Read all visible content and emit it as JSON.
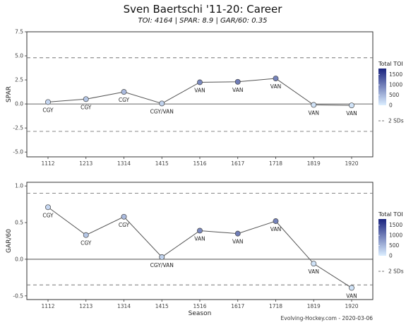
{
  "title": "Sven Baertschi '11-20: Career",
  "subtitle": "TOI: 4164 | SPAR: 8.9 | GAR/60: 0.35",
  "caption": "Evolving-Hockey.com - 2020-03-06",
  "colors": {
    "toi_low": "#dbeeff",
    "toi_high": "#1a237e",
    "line": "#555555",
    "zero_line": "#333333",
    "sd_line": "#777777",
    "panel_border": "#333333"
  },
  "legend": {
    "toi_title": "Total TOI",
    "toi_ticks": [
      "1500",
      "1000",
      "500",
      "0"
    ],
    "sd_label": "2 SDs"
  },
  "chart_data": [
    {
      "type": "line",
      "ylabel": "SPAR",
      "xlabel": "",
      "ylim": [
        -5.5,
        7.5
      ],
      "yticks": [
        "-5.0",
        "-2.5",
        "0.0",
        "2.5",
        "5.0",
        "7.5"
      ],
      "ytick_values": [
        -5,
        -2.5,
        0,
        2.5,
        5,
        7.5
      ],
      "sd_lines": [
        4.8,
        -2.85
      ],
      "categories": [
        "1112",
        "1213",
        "1314",
        "1415",
        "1516",
        "1617",
        "1718",
        "1819",
        "1920"
      ],
      "values": [
        0.2,
        0.5,
        1.25,
        0.05,
        2.25,
        2.3,
        2.65,
        -0.1,
        -0.15
      ],
      "teams": [
        "CGY",
        "CGY",
        "CGY",
        "CGY/VAN",
        "VAN",
        "VAN",
        "VAN",
        "VAN",
        "VAN"
      ],
      "toi": [
        200,
        350,
        450,
        250,
        900,
        1000,
        950,
        100,
        100
      ]
    },
    {
      "type": "line",
      "ylabel": "GAR/60",
      "xlabel": "Season",
      "ylim": [
        -0.55,
        1.05
      ],
      "yticks": [
        "-0.5",
        "0.0",
        "0.5",
        "1.0"
      ],
      "ytick_values": [
        -0.5,
        0,
        0.5,
        1.0
      ],
      "sd_lines": [
        0.9,
        -0.35
      ],
      "categories": [
        "1112",
        "1213",
        "1314",
        "1415",
        "1516",
        "1617",
        "1718",
        "1819",
        "1920"
      ],
      "values": [
        0.71,
        0.33,
        0.58,
        0.03,
        0.39,
        0.35,
        0.52,
        -0.06,
        -0.39
      ],
      "teams": [
        "CGY",
        "CGY",
        "CGY",
        "CGY/VAN",
        "VAN",
        "VAN",
        "VAN",
        "VAN",
        "VAN"
      ],
      "toi": [
        200,
        350,
        450,
        250,
        900,
        1000,
        950,
        100,
        100
      ]
    }
  ]
}
